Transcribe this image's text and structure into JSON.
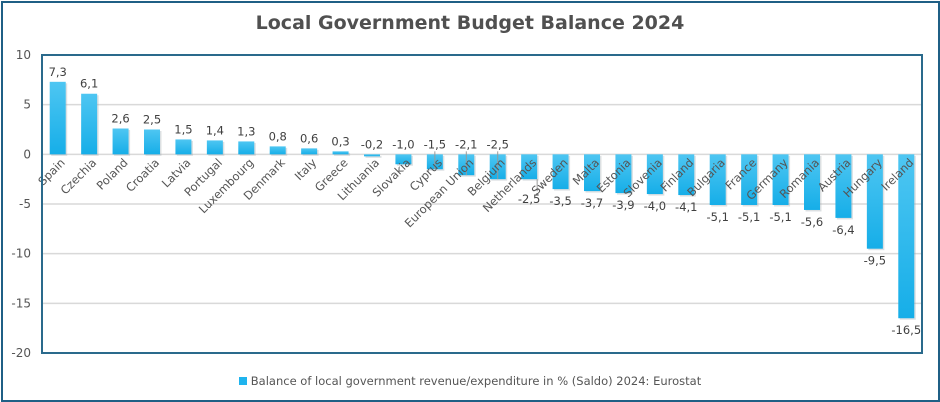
{
  "chart_data": {
    "type": "bar",
    "title": "Local Government Budget Balance 2024",
    "xlabel": "",
    "ylabel": "",
    "ylim": [
      -20,
      10
    ],
    "yticks": [
      10,
      5,
      0,
      -5,
      -10,
      -15,
      -20
    ],
    "ytick_labels": [
      "10",
      "5",
      "0",
      "-5",
      "-10",
      "-15",
      "-20"
    ],
    "grid": true,
    "legend_position": "bottom",
    "categories": [
      "Spain",
      "Czechia",
      "Poland",
      "Croatia",
      "Latvia",
      "Portugal",
      "Luxembourg",
      "Denmark",
      "Italy",
      "Greece",
      "Lithuania",
      "Slovakia",
      "Cyprus",
      "European Union",
      "Belgium",
      "Netherlands",
      "Sweden",
      "Malta",
      "Estonia",
      "Slovenia",
      "Finland",
      "Bulgaria",
      "France",
      "Germany",
      "Romania",
      "Austria",
      "Hungary",
      "Ireland"
    ],
    "series": [
      {
        "name": "Balance of local government revenue/expenditure in % (Saldo) 2024: Eurostat",
        "color": "#1fb4ee",
        "values": [
          7.3,
          6.1,
          2.6,
          2.5,
          1.5,
          1.4,
          1.3,
          0.8,
          0.6,
          0.3,
          -0.2,
          -1.0,
          -1.5,
          -2.1,
          -2.5,
          -2.5,
          -3.5,
          -3.7,
          -3.9,
          -4.0,
          -4.1,
          -5.1,
          -5.1,
          -5.1,
          -5.6,
          -6.4,
          -9.5,
          -16.5
        ],
        "data_labels": [
          "7,3",
          "6,1",
          "2,6",
          "2,5",
          "1,5",
          "1,4",
          "1,3",
          "0,8",
          "0,6",
          "0,3",
          "-0,2",
          "-1,0",
          "-1,5",
          "-2,1",
          "-2,5",
          "-2,5",
          "-3,5",
          "-3,7",
          "-3,9",
          "-4,0",
          "-4,1",
          "-5,1",
          "-5,1",
          "-5,1",
          "-5,6",
          "-6,4",
          "-9,5",
          "-16,5"
        ]
      }
    ]
  },
  "legend": {
    "label": "Balance of local government revenue/expenditure in % (Saldo) 2024: Eurostat"
  }
}
